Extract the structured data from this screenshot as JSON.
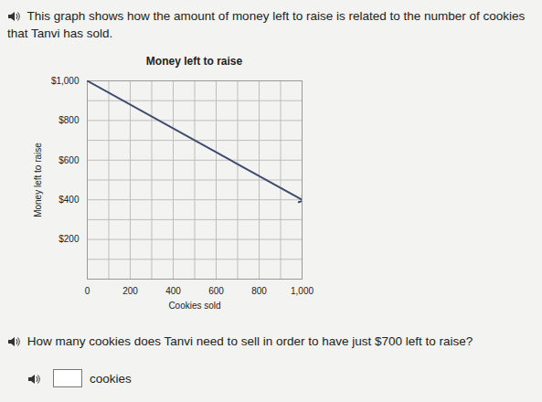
{
  "intro": "This graph shows how the amount of money left to raise is related to the number of cookies that Tanvi has sold.",
  "chart_data": {
    "type": "line",
    "title": "Money left to raise",
    "x_label": "Cookies sold",
    "y_label": "Money left to raise",
    "x": [
      0,
      1000
    ],
    "values": [
      1000,
      400
    ],
    "color": "#3c4a6e",
    "marker": "arrow",
    "xlim": [
      0,
      1000
    ],
    "ylim": [
      0,
      1000
    ],
    "xticks": [
      0,
      200,
      400,
      600,
      800,
      {
        "value": 1000,
        "label": "1,000"
      }
    ],
    "yticks": [
      {
        "value": 200,
        "label": "$200"
      },
      {
        "value": 400,
        "label": "$400"
      },
      {
        "value": 600,
        "label": "$600"
      },
      {
        "value": 800,
        "label": "$800"
      },
      {
        "value": 1000,
        "label": "$1,000"
      }
    ],
    "grid": true
  },
  "question": "How many cookies does Tanvi need to sell in order to have just $700 left to raise?",
  "answer_unit": "cookies"
}
